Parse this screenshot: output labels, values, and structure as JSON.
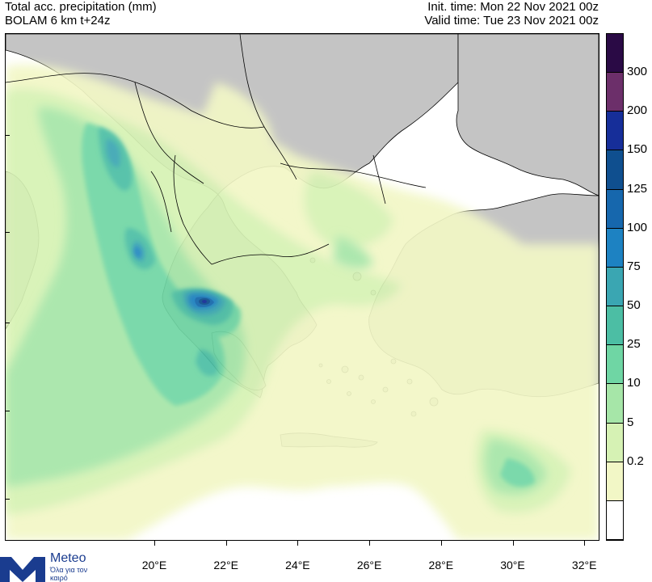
{
  "header": {
    "title": "Total acc. precipitation (mm)",
    "model": "BOLAM 6 km t+24z",
    "init_time": "Init. time: Mon 22 Nov 2021 00z",
    "valid_time": "Valid time: Tue 23 Nov 2021 00z"
  },
  "colorbar": {
    "levels": [
      {
        "label": "",
        "color": "#ffffff"
      },
      {
        "label": "0.2",
        "color": "#f2f7c6"
      },
      {
        "label": "5",
        "color": "#d6f2b4"
      },
      {
        "label": "10",
        "color": "#a6e6a8"
      },
      {
        "label": "25",
        "color": "#6fd6a4"
      },
      {
        "label": "50",
        "color": "#4cbea4"
      },
      {
        "label": "75",
        "color": "#3aa6b2"
      },
      {
        "label": "100",
        "color": "#1d82c2"
      },
      {
        "label": "125",
        "color": "#1667ad"
      },
      {
        "label": "150",
        "color": "#0f4f8f"
      },
      {
        "label": "200",
        "color": "#162e99"
      },
      {
        "label": "300",
        "color": "#6c2f6a"
      },
      {
        "label": "",
        "color": "#2a0a45"
      }
    ]
  },
  "axes": {
    "x_ticks": [
      "20°E",
      "22°E",
      "24°E",
      "26°E",
      "28°E",
      "30°E",
      "32°E"
    ]
  },
  "colors": {
    "land": "#c4c4c4",
    "sea": "#ffffff",
    "border": "#000000"
  },
  "brand": {
    "name": "Meteo",
    "slogan": "Όλα για τον καιρό",
    "color": "#1a3c8f"
  }
}
